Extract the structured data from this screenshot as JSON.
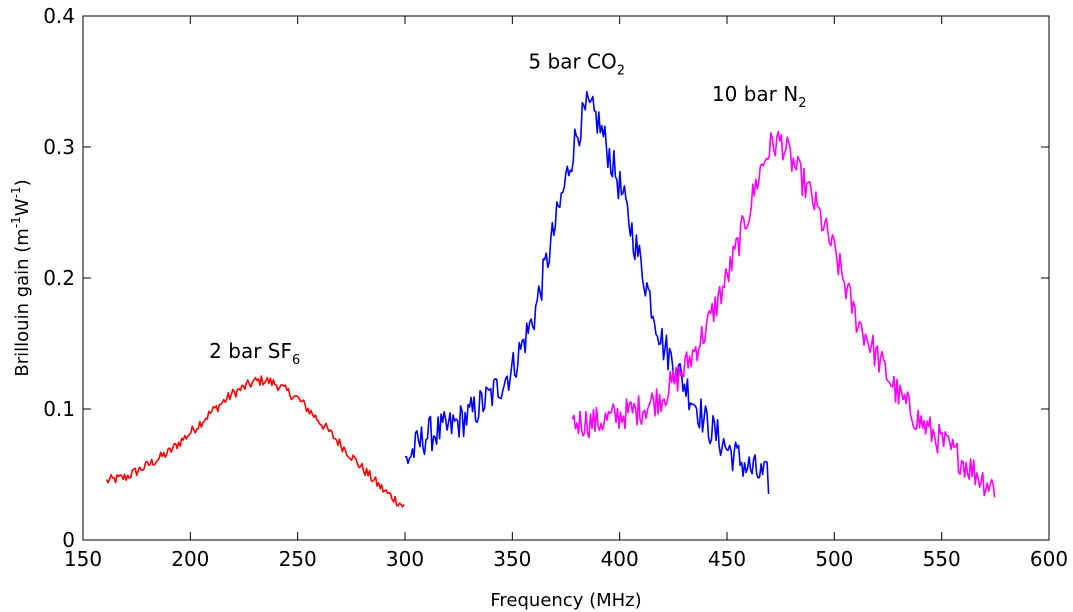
{
  "chart_data": {
    "type": "line",
    "title": "",
    "xlabel": "Frequency (MHz)",
    "ylabel": {
      "text": "Brillouin gain (m",
      "sup1": "-1",
      "mid": "W",
      "sup2": "-1",
      "end": ")"
    },
    "xlim": [
      150,
      600
    ],
    "ylim": [
      0,
      0.4
    ],
    "xticks": [
      150,
      200,
      250,
      300,
      350,
      400,
      450,
      500,
      550,
      600
    ],
    "yticks": [
      0,
      0.1,
      0.2,
      0.3,
      0.4
    ],
    "xtick_labels": [
      "150",
      "200",
      "250",
      "300",
      "350",
      "400",
      "450",
      "500",
      "550",
      "600"
    ],
    "ytick_labels": [
      "0",
      "0.1",
      "0.2",
      "0.3",
      "0.4"
    ],
    "grid": false,
    "legend": "none",
    "series": [
      {
        "label": {
          "main": "2 bar SF",
          "sub": "6"
        },
        "label_at": {
          "x": 230,
          "y": 0.139
        },
        "color": "#ff0000",
        "noise": 0.004,
        "x": [
          161,
          170,
          180,
          190,
          200,
          210,
          220,
          230,
          235,
          240,
          250,
          260,
          270,
          280,
          290,
          300
        ],
        "y": [
          0.045,
          0.048,
          0.057,
          0.067,
          0.082,
          0.098,
          0.112,
          0.121,
          0.122,
          0.119,
          0.108,
          0.091,
          0.073,
          0.055,
          0.038,
          0.025
        ]
      },
      {
        "label": {
          "main": "5 bar CO",
          "sub": "2"
        },
        "label_at": {
          "x": 380,
          "y": 0.36
        },
        "color": "#0000ff",
        "noise": 0.014,
        "x": [
          300,
          310,
          320,
          330,
          340,
          350,
          360,
          370,
          380,
          385,
          390,
          400,
          410,
          420,
          430,
          440,
          450,
          460,
          470
        ],
        "y": [
          0.06,
          0.08,
          0.085,
          0.095,
          0.11,
          0.13,
          0.17,
          0.24,
          0.31,
          0.33,
          0.32,
          0.27,
          0.21,
          0.15,
          0.12,
          0.09,
          0.07,
          0.055,
          0.045
        ]
      },
      {
        "label": {
          "main": "10 bar N",
          "sub": "2"
        },
        "label_at": {
          "x": 465,
          "y": 0.335
        },
        "color": "#ff00ff",
        "noise": 0.012,
        "x": [
          378,
          390,
          400,
          410,
          420,
          430,
          440,
          450,
          460,
          465,
          470,
          475,
          480,
          490,
          500,
          510,
          520,
          530,
          540,
          550,
          560,
          570,
          575
        ],
        "y": [
          0.09,
          0.09,
          0.095,
          0.1,
          0.11,
          0.13,
          0.16,
          0.2,
          0.25,
          0.28,
          0.3,
          0.305,
          0.29,
          0.26,
          0.22,
          0.17,
          0.14,
          0.11,
          0.09,
          0.075,
          0.06,
          0.045,
          0.04
        ]
      }
    ]
  }
}
